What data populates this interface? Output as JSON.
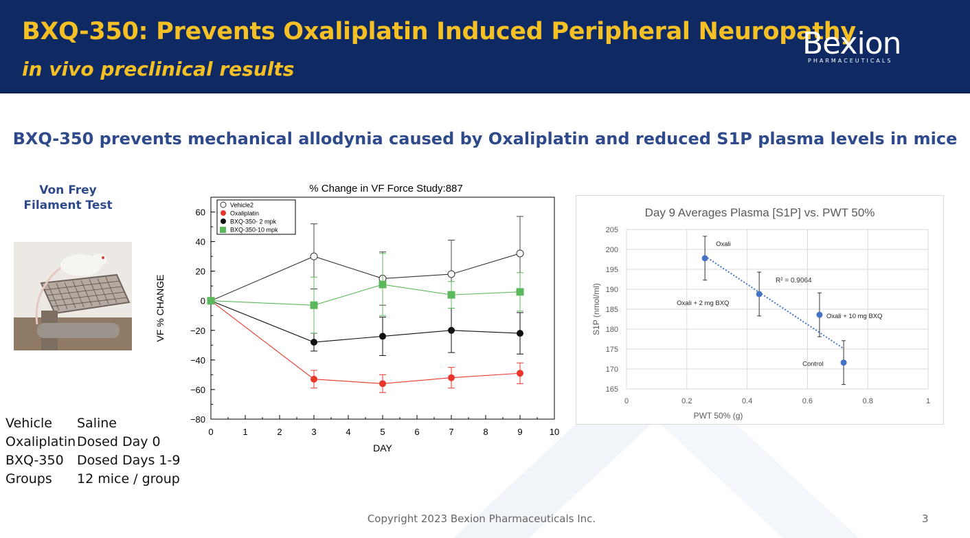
{
  "header": {
    "title": "BXQ-350: Prevents Oxaliplatin Induced Peripheral Neuropathy",
    "subtitle": "in vivo preclinical results",
    "logo_text": "Bexion",
    "logo_sub": "PHARMACEUTICALS",
    "bg_color": "#0f2a63",
    "title_color": "#f5c026"
  },
  "headline": "BXQ-350 prevents mechanical allodynia caused by Oxaliplatin and reduced S1P plasma levels in mice",
  "test_label": "Von Frey Filament Test",
  "photo_icon": "mouse-on-mesh-platform-photo",
  "groups": [
    {
      "key": "Vehicle",
      "value": "Saline"
    },
    {
      "key": "Oxaliplatin",
      "value": "Dosed Day 0"
    },
    {
      "key": "BXQ-350",
      "value": "Dosed Days 1-9"
    },
    {
      "key": "Groups",
      "value": "12 mice / group"
    }
  ],
  "footer": {
    "copyright": "Copyright 2023 Bexion Pharmaceuticals Inc.",
    "page": "3"
  },
  "chart_data": [
    {
      "type": "line",
      "title": "% Change in VF Force Study:887",
      "xlabel": "DAY",
      "ylabel": "VF % CHANGE",
      "xlim": [
        0,
        10
      ],
      "ylim": [
        -80,
        70
      ],
      "xticks": [
        0,
        1,
        2,
        3,
        4,
        5,
        6,
        7,
        8,
        9,
        10
      ],
      "yticks": [
        -80,
        -60,
        -40,
        -20,
        0,
        20,
        40,
        60
      ],
      "grid": false,
      "legend": "top-left",
      "x": [
        0,
        3,
        5,
        7,
        9
      ],
      "series": [
        {
          "name": "Vehicle2",
          "marker": "open-circle",
          "color": "#333333",
          "values": [
            0,
            30,
            15,
            18,
            32
          ],
          "err": [
            0,
            22,
            18,
            23,
            25
          ]
        },
        {
          "name": "Oxaliplatin",
          "marker": "circle",
          "color": "#e8372a",
          "values": [
            0,
            -53,
            -56,
            -52,
            -49
          ],
          "err": [
            0,
            6,
            6,
            7,
            7
          ]
        },
        {
          "name": "BXQ-350- 2 mpk",
          "marker": "circle",
          "color": "#111111",
          "values": [
            0,
            -28,
            -24,
            -20,
            -22
          ],
          "err": [
            0,
            6,
            13,
            15,
            14
          ]
        },
        {
          "name": "BXQ-350-10 mpk",
          "marker": "square",
          "color": "#5cb85c",
          "values": [
            0,
            -3,
            11,
            4,
            6
          ],
          "err": [
            0,
            19,
            21,
            9,
            13
          ]
        }
      ]
    },
    {
      "type": "scatter",
      "title": "Day 9 Averages Plasma [S1P] vs. PWT 50%",
      "xlabel": "PWT 50% (g)",
      "ylabel": "S1P (nmol/ml)",
      "xlim": [
        0,
        1
      ],
      "ylim": [
        165,
        205
      ],
      "xticks": [
        "0",
        "0.2",
        "0.4",
        "0.6",
        "0.8",
        "1"
      ],
      "yticks": [
        "165",
        "170",
        "175",
        "180",
        "185",
        "190",
        "195",
        "200",
        "205"
      ],
      "grid": true,
      "trendline": {
        "type": "linear-dotted",
        "r2_label": "R² = 0.9064"
      },
      "color": "#4472c4",
      "points": [
        {
          "label": "Oxali",
          "x": 0.26,
          "y": 197.8,
          "err": 5.5
        },
        {
          "label": "Oxali + 2 mg BXQ",
          "x": 0.44,
          "y": 188.8,
          "err": 5.5
        },
        {
          "label": "Oxali + 10 mg BXQ",
          "x": 0.64,
          "y": 183.6,
          "err": 5.5
        },
        {
          "label": "Control",
          "x": 0.72,
          "y": 171.6,
          "err": 5.5
        }
      ]
    }
  ]
}
